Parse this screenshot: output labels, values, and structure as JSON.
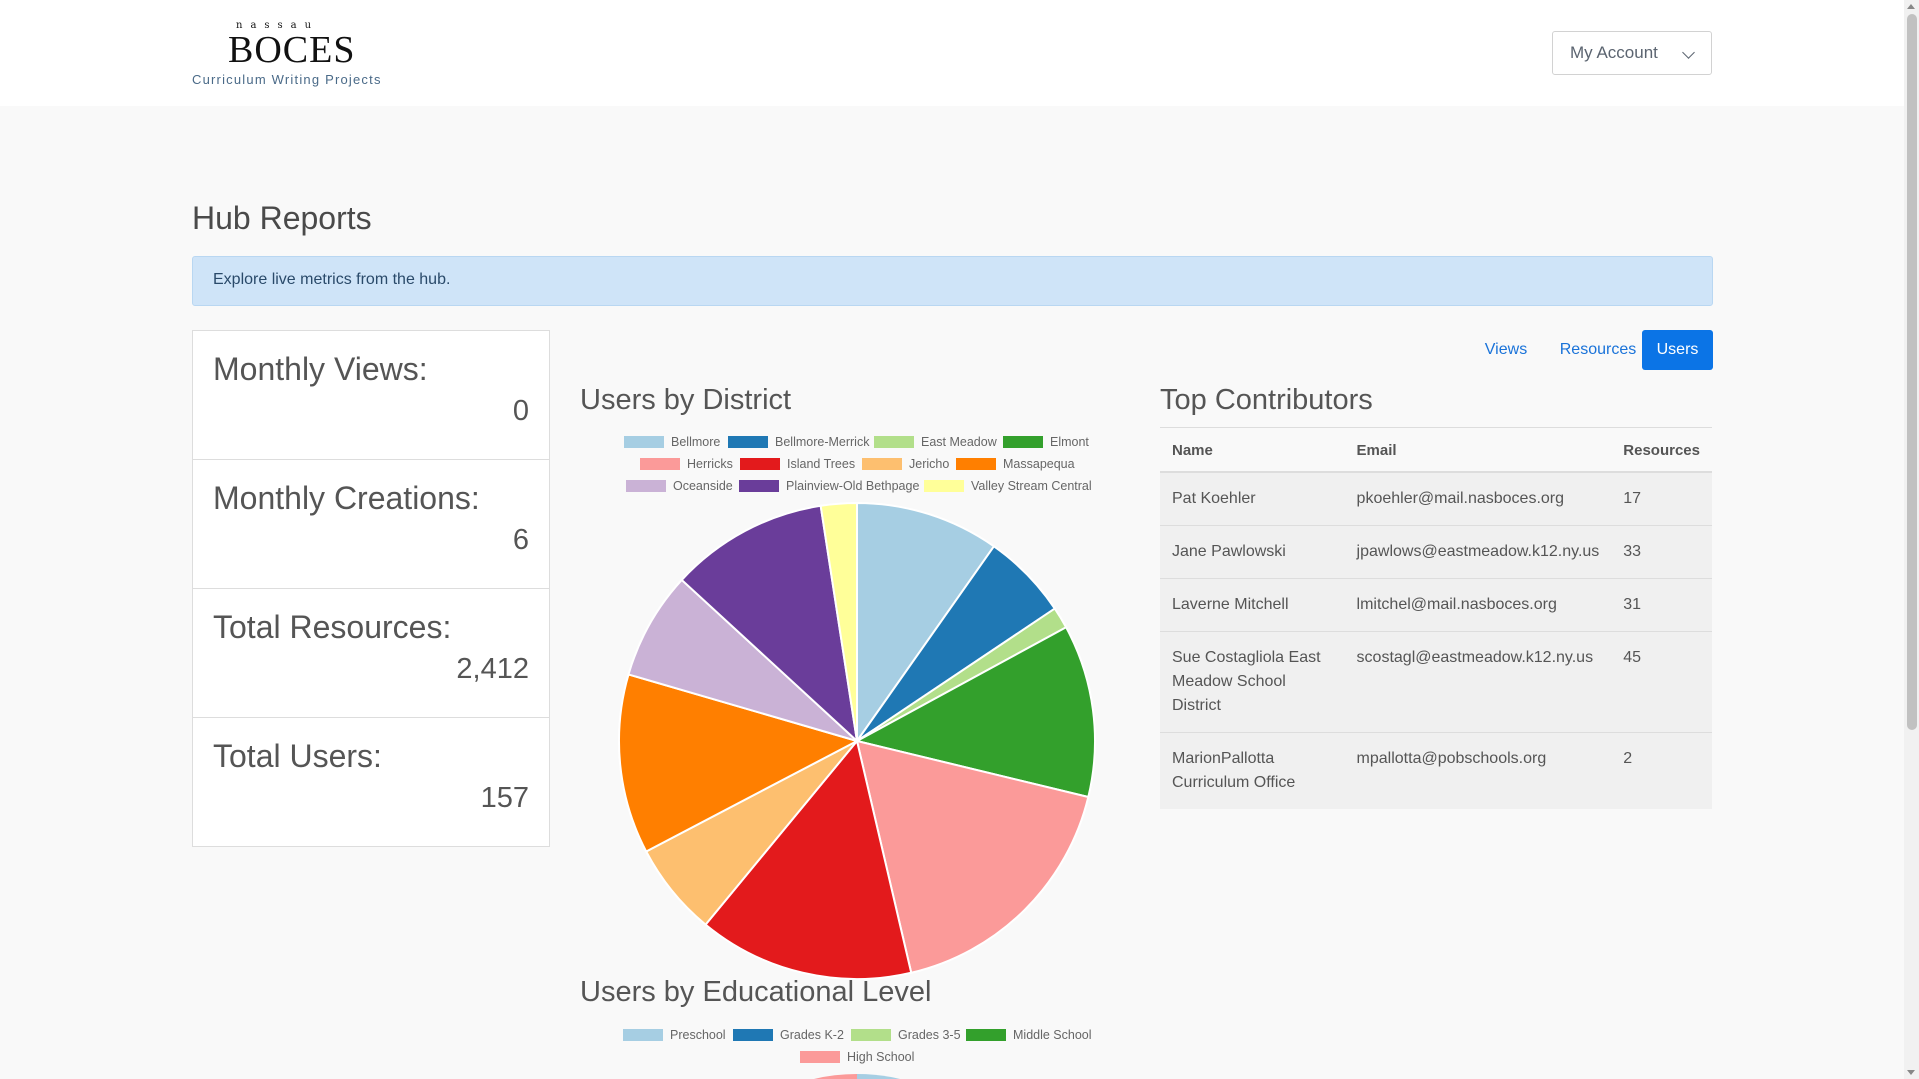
{
  "header": {
    "logo_small": "nassau",
    "logo_main": "BOCES",
    "logo_sub": "Curriculum Writing Projects",
    "account_label": "My Account"
  },
  "page": {
    "title": "Hub Reports",
    "info": "Explore live metrics from the hub."
  },
  "stats": [
    {
      "label": "Monthly Views:",
      "value": "0"
    },
    {
      "label": "Monthly Creations:",
      "value": "6"
    },
    {
      "label": "Total Resources:",
      "value": "2,412"
    },
    {
      "label": "Total Users:",
      "value": "157"
    }
  ],
  "tabs": [
    {
      "label": "Views",
      "active": false
    },
    {
      "label": "Resources",
      "active": false
    },
    {
      "label": "Users",
      "active": true
    }
  ],
  "contributors": {
    "title": "Top Contributors",
    "columns": [
      "Name",
      "Email",
      "Resources"
    ],
    "rows": [
      {
        "name": "Pat Koehler",
        "email": "pkoehler@mail.nasboces.org",
        "resources": "17"
      },
      {
        "name": "Jane Pawlowski",
        "email": "jpawlows@eastmeadow.k12.ny.us",
        "resources": "33"
      },
      {
        "name": "Laverne Mitchell",
        "email": "lmitchel@mail.nasboces.org",
        "resources": "31"
      },
      {
        "name": "Sue Costagliola East Meadow School District",
        "email": "scostagl@eastmeadow.k12.ny.us",
        "resources": "45"
      },
      {
        "name": "MarionPallotta Curriculum Office",
        "email": "mpallotta@pobschools.org",
        "resources": "2"
      }
    ]
  },
  "chart_data": [
    {
      "type": "pie",
      "title": "Users by District",
      "legend_position": "top",
      "categories": [
        "Bellmore",
        "Bellmore-Merrick",
        "East Meadow",
        "Elmont",
        "Herricks",
        "Island Trees",
        "Jericho",
        "Massapequa",
        "Oceanside",
        "Plainview-Old Bethpage",
        "Valley Stream Central"
      ],
      "values": [
        10,
        6,
        1.5,
        12,
        18,
        15,
        6.5,
        12.5,
        7.5,
        11,
        2.5
      ],
      "colors": [
        "#a6cee3",
        "#1f78b4",
        "#b2df8a",
        "#33a02c",
        "#fb9a99",
        "#e31a1c",
        "#fdbf6f",
        "#ff7f00",
        "#cab2d6",
        "#6a3d9a",
        "#ffff99"
      ]
    },
    {
      "type": "pie",
      "title": "Users by Educational Level",
      "legend_position": "top",
      "categories": [
        "Preschool",
        "Grades K-2",
        "Grades 3-5",
        "Middle School",
        "High School"
      ],
      "colors": [
        "#a6cee3",
        "#1f78b4",
        "#b2df8a",
        "#33a02c",
        "#fb9a99"
      ]
    }
  ]
}
